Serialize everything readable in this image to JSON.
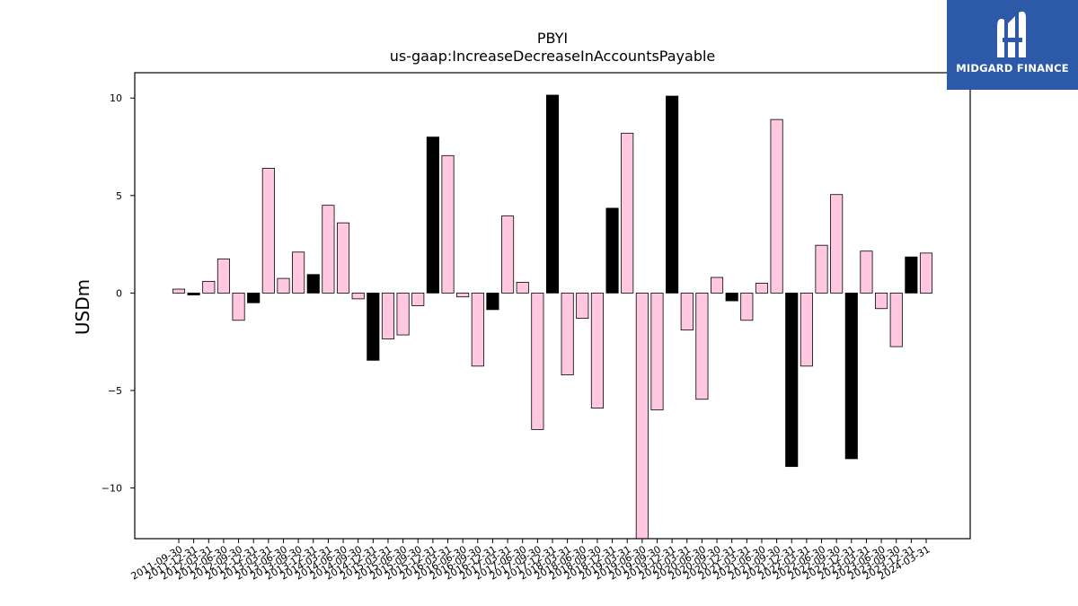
{
  "chart_data": {
    "type": "bar",
    "title": "PBYI",
    "subtitle": "us-gaap:IncreaseDecreaseInAccountsPayable",
    "xlabel": "",
    "ylabel": "USDm",
    "ylim": [
      -12.6,
      11.3
    ],
    "yticks": [
      10,
      5,
      0,
      -5,
      -10
    ],
    "grid": false,
    "legend": "none",
    "colors": {
      "quarter": "#ffc8e0",
      "year_end": "#000000",
      "edge": "#000000"
    },
    "categories": [
      "2011-09-30",
      "2011-12-31",
      "2012-03-31",
      "2012-06-30",
      "2012-09-30",
      "2012-12-31",
      "2013-03-31",
      "2013-06-30",
      "2013-09-30",
      "2013-12-31",
      "2014-03-31",
      "2014-06-30",
      "2014-09-30",
      "2014-12-31",
      "2015-03-31",
      "2015-06-30",
      "2015-09-30",
      "2015-12-31",
      "2016-03-31",
      "2016-06-30",
      "2016-09-30",
      "2016-12-31",
      "2017-03-31",
      "2017-06-30",
      "2017-09-30",
      "2017-12-31",
      "2018-03-31",
      "2018-06-30",
      "2018-09-30",
      "2018-12-31",
      "2019-03-31",
      "2019-06-30",
      "2019-09-30",
      "2019-12-31",
      "2020-03-31",
      "2020-06-30",
      "2020-09-30",
      "2020-12-31",
      "2021-03-31",
      "2021-06-30",
      "2021-09-30",
      "2021-12-31",
      "2022-03-31",
      "2022-06-30",
      "2022-09-30",
      "2022-12-31",
      "2023-03-31",
      "2023-06-30",
      "2023-09-30",
      "2023-12-31",
      "2024-03-31"
    ],
    "values": [
      0.2,
      -0.1,
      0.6,
      1.75,
      -1.4,
      -0.5,
      6.4,
      0.75,
      2.1,
      0.95,
      4.5,
      3.6,
      -0.3,
      -3.45,
      -2.35,
      -2.15,
      -0.65,
      8.0,
      7.05,
      -0.2,
      -3.75,
      -0.85,
      3.95,
      0.55,
      -7.0,
      10.15,
      -4.2,
      -1.3,
      -5.9,
      4.35,
      8.2,
      -12.6,
      -6.0,
      10.1,
      -1.9,
      -5.45,
      0.8,
      -0.4,
      -1.4,
      0.5,
      8.9,
      -8.9,
      -3.75,
      2.45,
      5.05,
      -8.5,
      2.15,
      -0.8,
      -2.75,
      1.85,
      2.05
    ],
    "year_end_flags": [
      false,
      true,
      false,
      false,
      false,
      true,
      false,
      false,
      false,
      true,
      false,
      false,
      false,
      true,
      false,
      false,
      false,
      true,
      false,
      false,
      false,
      true,
      false,
      false,
      false,
      true,
      false,
      false,
      false,
      true,
      false,
      false,
      false,
      true,
      false,
      false,
      false,
      true,
      false,
      false,
      false,
      true,
      false,
      false,
      false,
      true,
      false,
      false,
      false,
      true,
      false
    ]
  },
  "logo": {
    "text": "MIDGARD FINANCE",
    "icon": "midgard-logo-icon",
    "color": "#2d5aa8"
  }
}
